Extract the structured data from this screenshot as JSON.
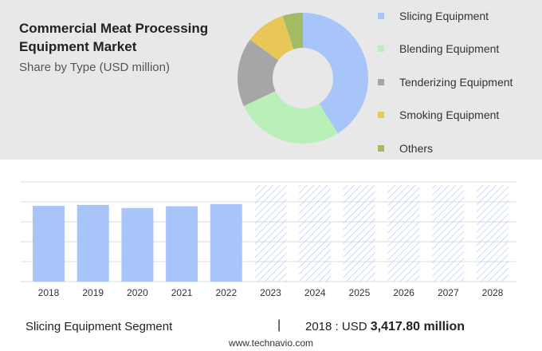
{
  "header": {
    "title": "Commercial Meat Processing Equipment Market",
    "subtitle": "Share by Type (USD million)"
  },
  "footer": {
    "segment_label": "Slicing Equipment Segment",
    "separator": "|",
    "year_label": "2018 : USD",
    "year_value": "3,417.80 million",
    "source": "www.technavio.com"
  },
  "colors": {
    "slicing": "#a8c5fa",
    "blending": "#b8f0b8",
    "tenderizing": "#a6a6a6",
    "smoking": "#e8c657",
    "others": "#a3bb63",
    "bar": "#a8c5fa",
    "forecast_hatch": "#b7caf2"
  },
  "chart_data": [
    {
      "type": "pie",
      "donut": true,
      "legend_position": "right",
      "slices": [
        {
          "name": "Slicing Equipment",
          "value": 41
        },
        {
          "name": "Blending Equipment",
          "value": 27
        },
        {
          "name": "Tenderizing Equipment",
          "value": 17
        },
        {
          "name": "Smoking Equipment",
          "value": 10
        },
        {
          "name": "Others",
          "value": 5
        }
      ]
    },
    {
      "type": "bar",
      "categories": [
        "2018",
        "2019",
        "2020",
        "2021",
        "2022",
        "2023",
        "2024",
        "2025",
        "2026",
        "2027",
        "2028"
      ],
      "values": [
        3417.8,
        3460,
        3320,
        3400,
        3500,
        null,
        null,
        null,
        null,
        null,
        null
      ],
      "forecast_start": "2023",
      "ylim": [
        0,
        4500
      ],
      "grid": true,
      "y_tick_labels_shown": false
    }
  ]
}
